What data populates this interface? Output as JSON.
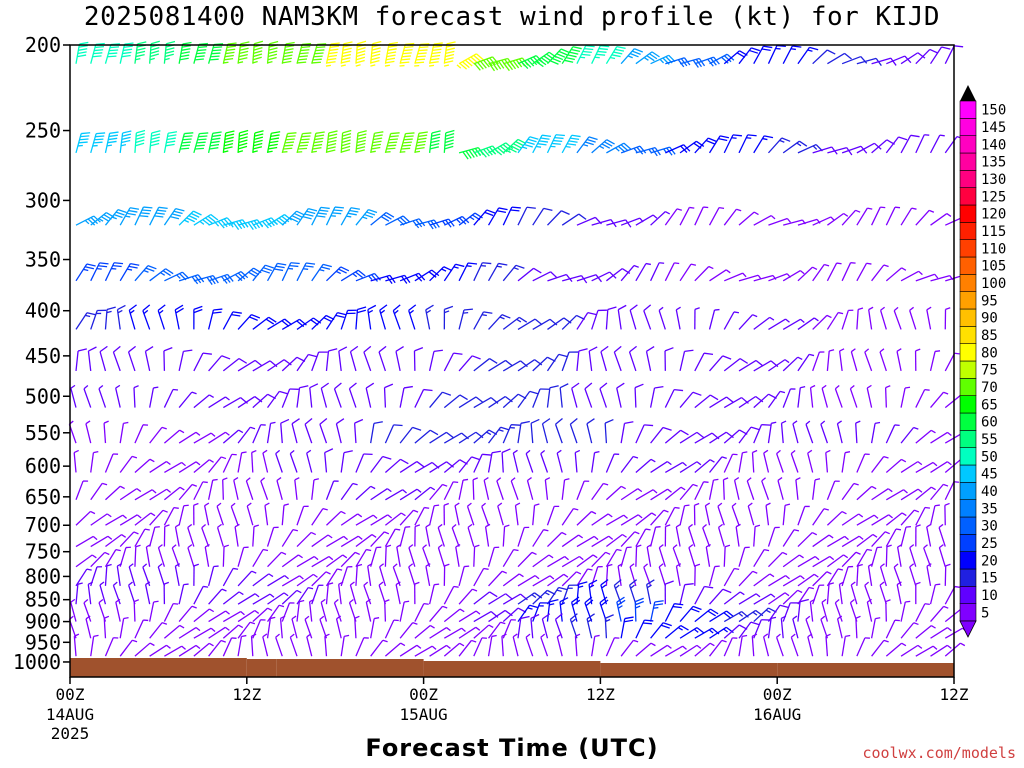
{
  "title": "2025081400 NAM3KM forecast wind profile (kt) for KIJD",
  "credit": "coolwx.com/models",
  "chart_data": {
    "type": "wind-barb-time-height",
    "xlabel": "Forecast Time (UTC)",
    "ylabel": "",
    "x_range_hours": [
      0,
      60
    ],
    "x_ticks": [
      {
        "hour": 0,
        "label": "00Z",
        "sub": [
          "14AUG",
          "2025"
        ]
      },
      {
        "hour": 12,
        "label": "12Z",
        "sub": []
      },
      {
        "hour": 24,
        "label": "00Z",
        "sub": [
          "15AUG"
        ]
      },
      {
        "hour": 36,
        "label": "12Z",
        "sub": []
      },
      {
        "hour": 48,
        "label": "00Z",
        "sub": [
          "16AUG"
        ]
      },
      {
        "hour": 60,
        "label": "12Z",
        "sub": []
      }
    ],
    "y_scale": "log-pressure",
    "y_range_hpa": [
      1040,
      200
    ],
    "y_ticks": [
      200,
      250,
      300,
      350,
      400,
      450,
      500,
      550,
      600,
      650,
      700,
      750,
      800,
      850,
      900,
      950,
      1000
    ],
    "barb_levels_hpa": [
      210,
      265,
      320,
      370,
      420,
      468,
      515,
      565,
      610,
      655,
      700,
      740,
      780,
      820,
      860,
      900,
      940,
      985
    ],
    "wind_speed_kt": [
      [
        50,
        55,
        62,
        68,
        72,
        78,
        80,
        78,
        72,
        62,
        48,
        38,
        30,
        22,
        18,
        14,
        12,
        10
      ],
      [
        45,
        52,
        60,
        65,
        68,
        70,
        68,
        62,
        55,
        45,
        36,
        28,
        22,
        18,
        15,
        12,
        10,
        8
      ],
      [
        38,
        42,
        45,
        46,
        42,
        38,
        32,
        26,
        20,
        14,
        10,
        8,
        6,
        6,
        5,
        5,
        5,
        5
      ],
      [
        25,
        28,
        30,
        30,
        28,
        25,
        22,
        18,
        15,
        12,
        10,
        8,
        6,
        6,
        5,
        5,
        5,
        5
      ],
      [
        15,
        18,
        20,
        22,
        22,
        20,
        18,
        16,
        15,
        14,
        12,
        10,
        9,
        8,
        8,
        7,
        6,
        5
      ],
      [
        10,
        12,
        12,
        12,
        12,
        12,
        12,
        12,
        14,
        14,
        12,
        12,
        10,
        10,
        8,
        7,
        6,
        5
      ],
      [
        8,
        8,
        8,
        10,
        10,
        12,
        12,
        14,
        14,
        14,
        12,
        12,
        10,
        10,
        8,
        7,
        6,
        5
      ],
      [
        5,
        6,
        6,
        8,
        10,
        12,
        14,
        14,
        15,
        14,
        14,
        12,
        12,
        10,
        9,
        8,
        8,
        6
      ],
      [
        5,
        5,
        5,
        6,
        8,
        10,
        12,
        12,
        10,
        8,
        8,
        8,
        8,
        6,
        6,
        6,
        6,
        6
      ],
      [
        5,
        5,
        5,
        5,
        6,
        8,
        8,
        6,
        5,
        5,
        5,
        5,
        5,
        5,
        5,
        5,
        5,
        5
      ],
      [
        5,
        5,
        5,
        5,
        5,
        5,
        5,
        5,
        5,
        5,
        5,
        5,
        5,
        5,
        5,
        5,
        5,
        5
      ],
      [
        5,
        5,
        5,
        5,
        5,
        5,
        5,
        5,
        5,
        5,
        5,
        5,
        5,
        5,
        5,
        5,
        5,
        5
      ],
      [
        5,
        5,
        5,
        5,
        5,
        5,
        5,
        5,
        5,
        5,
        5,
        5,
        5,
        5,
        5,
        5,
        5,
        5
      ],
      [
        8,
        8,
        8,
        8,
        5,
        5,
        5,
        5,
        5,
        5,
        5,
        5,
        5,
        5,
        5,
        5,
        5,
        5
      ],
      [
        8,
        8,
        8,
        8,
        8,
        5,
        5,
        5,
        10,
        15,
        18,
        15,
        10,
        8,
        5,
        5,
        5,
        5
      ],
      [
        5,
        5,
        5,
        5,
        5,
        5,
        5,
        5,
        10,
        18,
        22,
        25,
        20,
        15,
        10,
        5,
        5,
        5
      ],
      [
        5,
        5,
        5,
        5,
        5,
        5,
        5,
        5,
        5,
        10,
        15,
        20,
        18,
        12,
        8,
        5,
        5,
        5
      ],
      [
        5,
        5,
        5,
        5,
        5,
        5,
        5,
        5,
        5,
        5,
        5,
        5,
        5,
        5,
        5,
        5,
        5,
        5
      ]
    ],
    "colorbar": {
      "min": 5,
      "max": 150,
      "step": 5,
      "labels": [
        5,
        10,
        15,
        20,
        25,
        30,
        35,
        40,
        45,
        50,
        55,
        60,
        65,
        70,
        75,
        80,
        85,
        90,
        95,
        100,
        105,
        110,
        115,
        120,
        125,
        130,
        135,
        140,
        145,
        150
      ],
      "colors": [
        "#8000ff",
        "#6000ff",
        "#2020e0",
        "#0000ff",
        "#0040ff",
        "#0060ff",
        "#0080ff",
        "#00a0ff",
        "#00c8ff",
        "#00ffc0",
        "#00ff80",
        "#00ff40",
        "#00ff00",
        "#60ff00",
        "#c0ff00",
        "#ffff00",
        "#ffe000",
        "#ffc000",
        "#ffa000",
        "#ff8000",
        "#ff6000",
        "#ff4000",
        "#ff2000",
        "#ff0000",
        "#ff0040",
        "#ff0080",
        "#ff00a0",
        "#ff00c0",
        "#ff00e0",
        "#ff00ff"
      ]
    },
    "terrain_color": "#a0522d",
    "grid": false
  }
}
